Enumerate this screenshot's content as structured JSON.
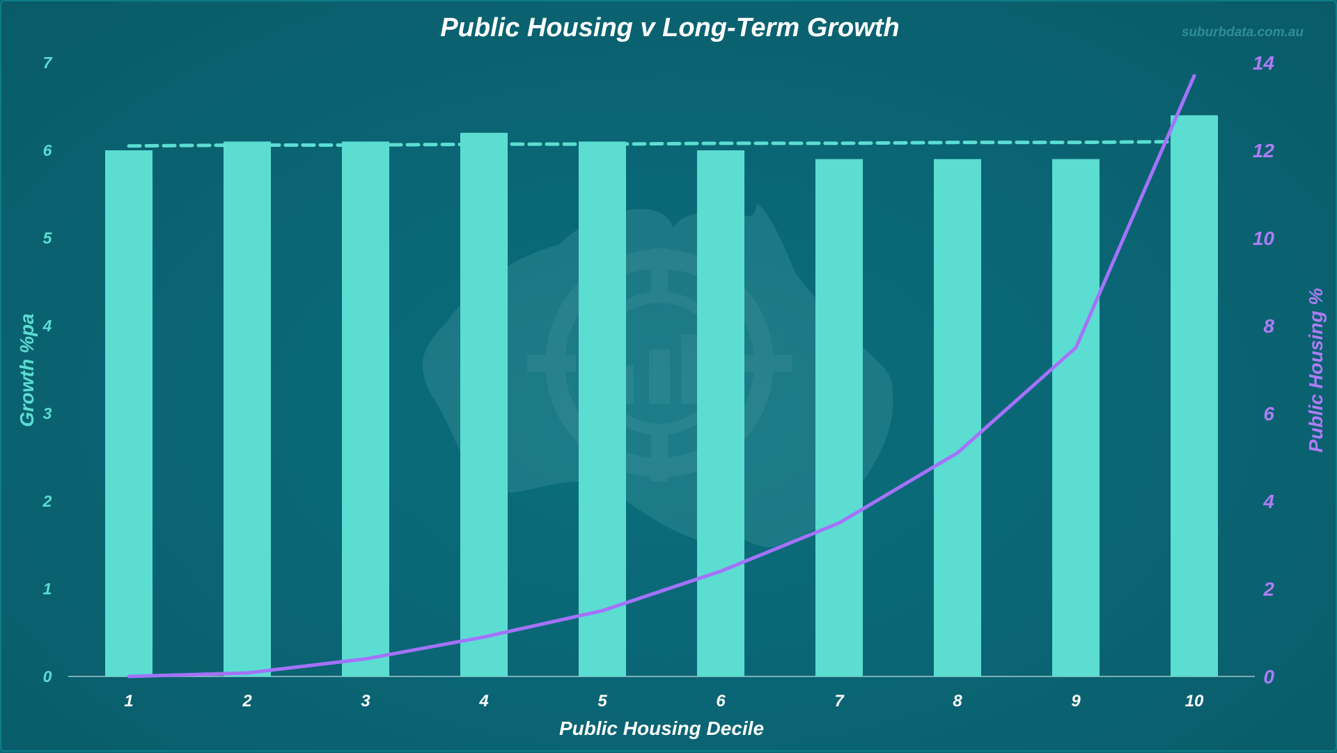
{
  "chart_data": {
    "type": "bar",
    "title": "Public Housing v Long-Term Growth",
    "watermark": "suburbdata.com.au",
    "xlabel": "Public Housing Decile",
    "ylabel": "Growth %pa",
    "y2label": "Public Housing %",
    "categories": [
      "1",
      "2",
      "3",
      "4",
      "5",
      "6",
      "7",
      "8",
      "9",
      "10"
    ],
    "ylim": [
      0,
      7
    ],
    "y2lim": [
      0,
      14
    ],
    "yticks": [
      "0",
      "1",
      "2",
      "3",
      "4",
      "5",
      "6",
      "7"
    ],
    "y2ticks": [
      "0",
      "2",
      "4",
      "6",
      "8",
      "10",
      "12",
      "14"
    ],
    "grid": false,
    "series": [
      {
        "type": "bar",
        "axis": "left",
        "values": [
          6.0,
          6.1,
          6.1,
          6.2,
          6.1,
          6.0,
          5.9,
          5.9,
          5.9,
          6.4
        ]
      },
      {
        "type": "line",
        "style": "dashed",
        "axis": "left",
        "values": [
          6.05,
          6.06,
          6.06,
          6.07,
          6.07,
          6.08,
          6.08,
          6.09,
          6.09,
          6.1
        ]
      },
      {
        "type": "line",
        "axis": "right",
        "values": [
          0.0,
          0.08,
          0.4,
          0.9,
          1.5,
          2.4,
          3.5,
          5.1,
          7.5,
          13.7
        ]
      }
    ],
    "colors": {
      "bar": "#5cddd2",
      "trend": "#5cddd2",
      "line": "#a472fb",
      "left_axis_text": "#5cddd2",
      "right_axis_text": "#ad7cf6",
      "background": "#0a6775"
    }
  }
}
